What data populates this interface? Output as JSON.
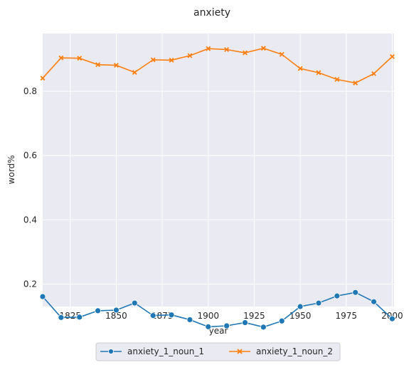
{
  "chart_data": {
    "type": "line",
    "title": "anxiety",
    "xlabel": "year",
    "ylabel": "word%",
    "x": [
      1810,
      1820,
      1830,
      1840,
      1850,
      1860,
      1870,
      1880,
      1890,
      1900,
      1910,
      1920,
      1930,
      1940,
      1950,
      1960,
      1970,
      1980,
      1990,
      2000
    ],
    "xlim": [
      1810,
      2001
    ],
    "ylim": [
      0.13,
      0.98
    ],
    "xticks": [
      1825,
      1850,
      1875,
      1900,
      1925,
      1950,
      1975,
      2000
    ],
    "yticks": [
      0.2,
      0.4,
      0.6,
      0.8
    ],
    "ytick_labels": [
      "0.2",
      "0.4",
      "0.6",
      "0.8"
    ],
    "grid": true,
    "legend_position": "bottom-center",
    "series": [
      {
        "name": "anxiety_1_noun_1",
        "color": "#1f77b4",
        "marker": "circle",
        "values": [
          0.161,
          0.096,
          0.097,
          0.117,
          0.119,
          0.141,
          0.102,
          0.104,
          0.089,
          0.067,
          0.07,
          0.08,
          0.066,
          0.085,
          0.13,
          0.141,
          0.163,
          0.174,
          0.145,
          0.092
        ]
      },
      {
        "name": "anxiety_1_noun_2",
        "color": "#ff7f0e",
        "marker": "x",
        "values": [
          0.841,
          0.904,
          0.903,
          0.883,
          0.881,
          0.859,
          0.898,
          0.897,
          0.911,
          0.933,
          0.93,
          0.92,
          0.934,
          0.915,
          0.871,
          0.858,
          0.837,
          0.826,
          0.855,
          0.908
        ]
      }
    ]
  }
}
